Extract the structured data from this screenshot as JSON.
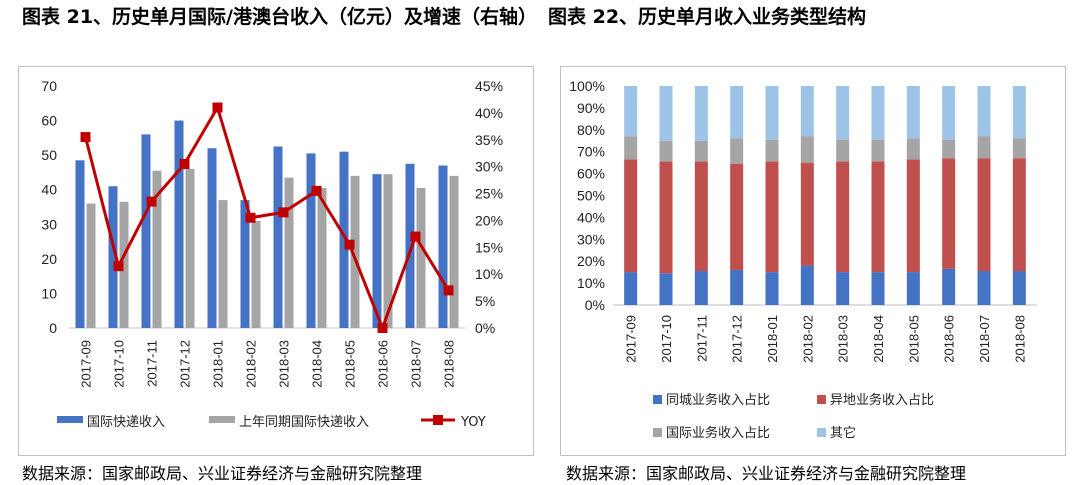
{
  "titles": {
    "left": "图表 21、历史单月国际/港澳台收入（亿元）及增速（右轴）",
    "right": "图表 22、历史单月收入业务类型结构"
  },
  "sources": {
    "left": "数据来源：国家邮政局、兴业证券经济与金融研究院整理",
    "right": "数据来源：国家邮政局、兴业证券经济与金融研究院整理"
  },
  "chart_data": [
    {
      "type": "bar",
      "categories": [
        "2017-09",
        "2017-10",
        "2017-11",
        "2017-12",
        "2018-01",
        "2018-02",
        "2018-03",
        "2018-04",
        "2018-05",
        "2018-06",
        "2018-07",
        "2018-08"
      ],
      "series": [
        {
          "name": "国际快递收入",
          "type": "bar",
          "axis": "left",
          "color": "#4472c4",
          "values": [
            48.5,
            41,
            56,
            60,
            52,
            37,
            52.5,
            50.5,
            51,
            44.5,
            47.5,
            47
          ]
        },
        {
          "name": "上年同期国际快递收入",
          "type": "bar",
          "axis": "left",
          "color": "#a5a5a5",
          "values": [
            36,
            36.5,
            45.5,
            46,
            37,
            31,
            43.5,
            40.5,
            44,
            44.5,
            40.5,
            44
          ]
        },
        {
          "name": "YOY",
          "type": "line",
          "axis": "right",
          "color": "#c00000",
          "values": [
            35.5,
            11.5,
            23.5,
            30.5,
            41,
            20.5,
            21.5,
            25.5,
            15.5,
            0,
            17,
            7
          ]
        }
      ],
      "left_axis": {
        "ylim": [
          0,
          70
        ],
        "ticks": [
          "0",
          "10",
          "20",
          "30",
          "40",
          "50",
          "60",
          "70"
        ]
      },
      "right_axis": {
        "ylim": [
          0,
          45
        ],
        "ticks": [
          "0%",
          "5%",
          "10%",
          "15%",
          "20%",
          "25%",
          "30%",
          "35%",
          "40%",
          "45%"
        ]
      },
      "legend_position": "bottom",
      "grid": false
    },
    {
      "type": "bar",
      "stacked": true,
      "categories": [
        "2017-09",
        "2017-10",
        "2017-11",
        "2017-12",
        "2018-01",
        "2018-02",
        "2018-03",
        "2018-04",
        "2018-05",
        "2018-06",
        "2018-07",
        "2018-08"
      ],
      "series": [
        {
          "name": "同城业务收入占比",
          "color": "#4472c4",
          "values": [
            15,
            14.5,
            15.5,
            16,
            15,
            18,
            15,
            15,
            15,
            16.5,
            15.5,
            15.5
          ]
        },
        {
          "name": "异地业务收入占比",
          "color": "#c0504d",
          "values": [
            51.5,
            51,
            50,
            48.5,
            50.5,
            47,
            50.5,
            50.5,
            51.5,
            50.5,
            51.5,
            51.5
          ]
        },
        {
          "name": "国际业务收入占比",
          "color": "#a5a5a5",
          "values": [
            10.5,
            9.5,
            9.5,
            11.5,
            10,
            12,
            10,
            10,
            9.5,
            8.5,
            10,
            9
          ]
        },
        {
          "name": "其它",
          "color": "#9dc3e6",
          "values": [
            23,
            25,
            25,
            24,
            24.5,
            23,
            24.5,
            24.5,
            24,
            24.5,
            23,
            24
          ]
        }
      ],
      "y_axis": {
        "ylim": [
          0,
          100
        ],
        "ticks": [
          "0%",
          "10%",
          "20%",
          "30%",
          "40%",
          "50%",
          "60%",
          "70%",
          "80%",
          "90%",
          "100%"
        ]
      },
      "legend_position": "bottom",
      "grid": false
    }
  ]
}
